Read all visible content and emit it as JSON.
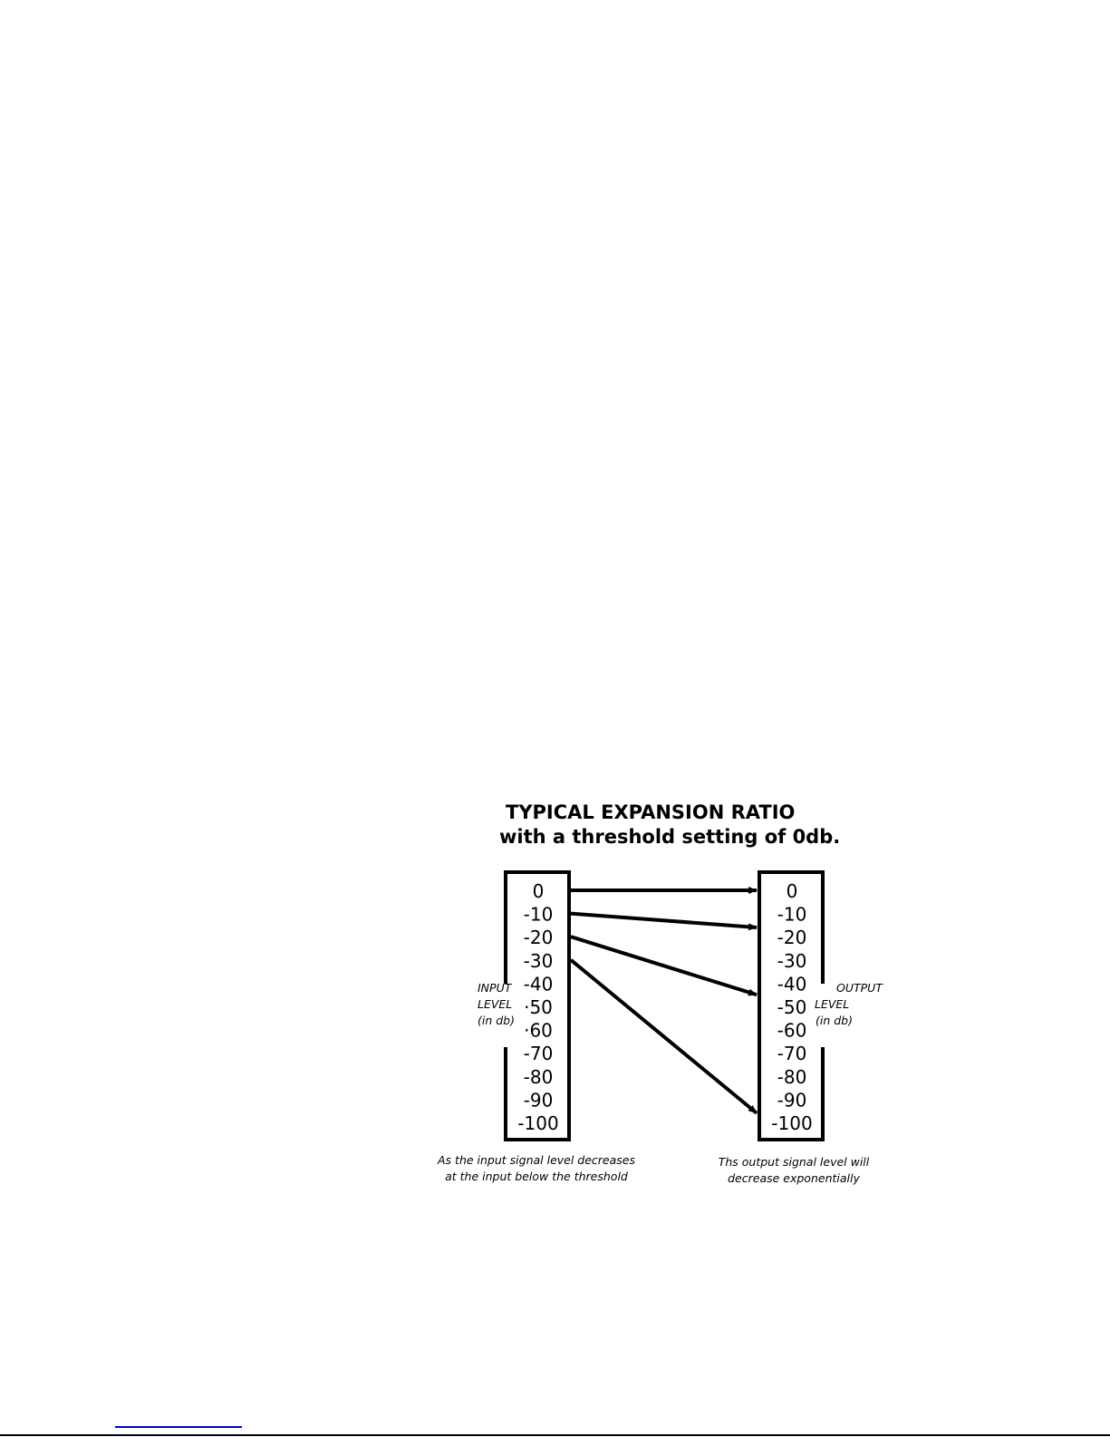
{
  "diagram": {
    "title_line1": "TYPICAL EXPANSION RATIO",
    "title_line2": "with a threshold setting of 0db.",
    "input_scale": [
      "0",
      "-10",
      "-20",
      "-30",
      "-40",
      "·50",
      "·60",
      "-70",
      "-80",
      "-90",
      "-100"
    ],
    "output_scale": [
      "0",
      "-10",
      "-20",
      "-30",
      "-40",
      "-50",
      "-60",
      "-70",
      "-80",
      "-90",
      "-100"
    ],
    "input_label": [
      "INPUT",
      "LEVEL",
      "(in db)"
    ],
    "output_label": [
      "OUTPUT",
      "LEVEL",
      "(in db)"
    ],
    "input_caption": [
      "As the input signal level decreases",
      "at the input below the threshold"
    ],
    "output_caption": [
      "Ths output signal level will",
      "decrease exponentially"
    ],
    "arrows": [
      {
        "from": 0,
        "to": 0
      },
      {
        "from": -10,
        "to": -16
      },
      {
        "from": -20,
        "to": -45
      },
      {
        "from": -30,
        "to": -96
      }
    ]
  },
  "colors": {
    "ink": "#000000",
    "link": "#0000cc"
  }
}
